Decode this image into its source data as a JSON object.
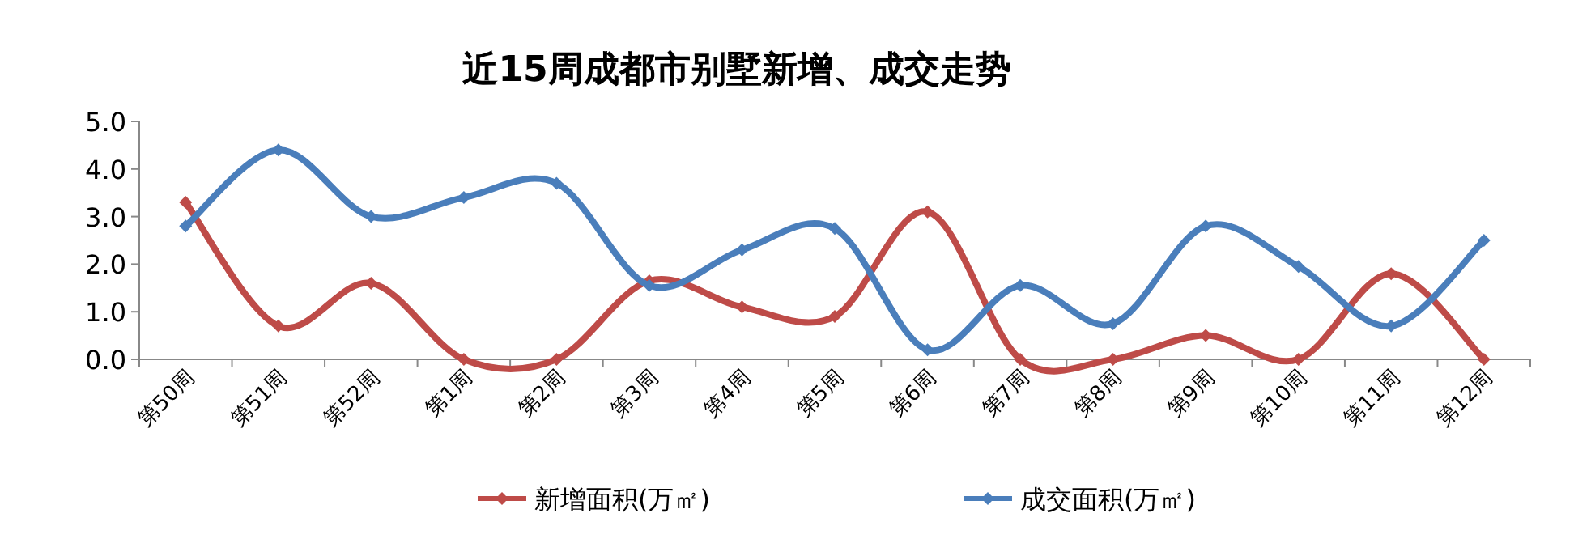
{
  "chart_data": {
    "type": "line",
    "title": "近15周成都市别墅新增、成交走势",
    "categories": [
      "第50周",
      "第51周",
      "第52周",
      "第1周",
      "第2周",
      "第3周",
      "第4周",
      "第5周",
      "第6周",
      "第7周",
      "第8周",
      "第9周",
      "第10周",
      "第11周",
      "第12周"
    ],
    "series": [
      {
        "name": "新增面积(万㎡)",
        "color": "#be4b48",
        "values": [
          3.3,
          0.7,
          1.6,
          0,
          0,
          1.65,
          1.1,
          0.9,
          3.1,
          0,
          0,
          0.5,
          0,
          1.8,
          0
        ]
      },
      {
        "name": "成交面积(万㎡)",
        "color": "#4a7ebb",
        "values": [
          2.8,
          4.4,
          3.0,
          3.4,
          3.7,
          1.55,
          2.3,
          2.75,
          0.2,
          1.55,
          0.75,
          2.8,
          1.95,
          0.7,
          2.5
        ]
      }
    ],
    "ylim": [
      0,
      5
    ],
    "yticks": [
      {
        "value": 0,
        "label": "0.0"
      },
      {
        "value": 1,
        "label": "1.0"
      },
      {
        "value": 2,
        "label": "2.0"
      },
      {
        "value": 3,
        "label": "3.0"
      },
      {
        "value": 4,
        "label": "4.0"
      },
      {
        "value": 5,
        "label": "5.0"
      }
    ],
    "marker": "diamond",
    "line_style": "solid",
    "grid": false,
    "legend": "bottom"
  }
}
